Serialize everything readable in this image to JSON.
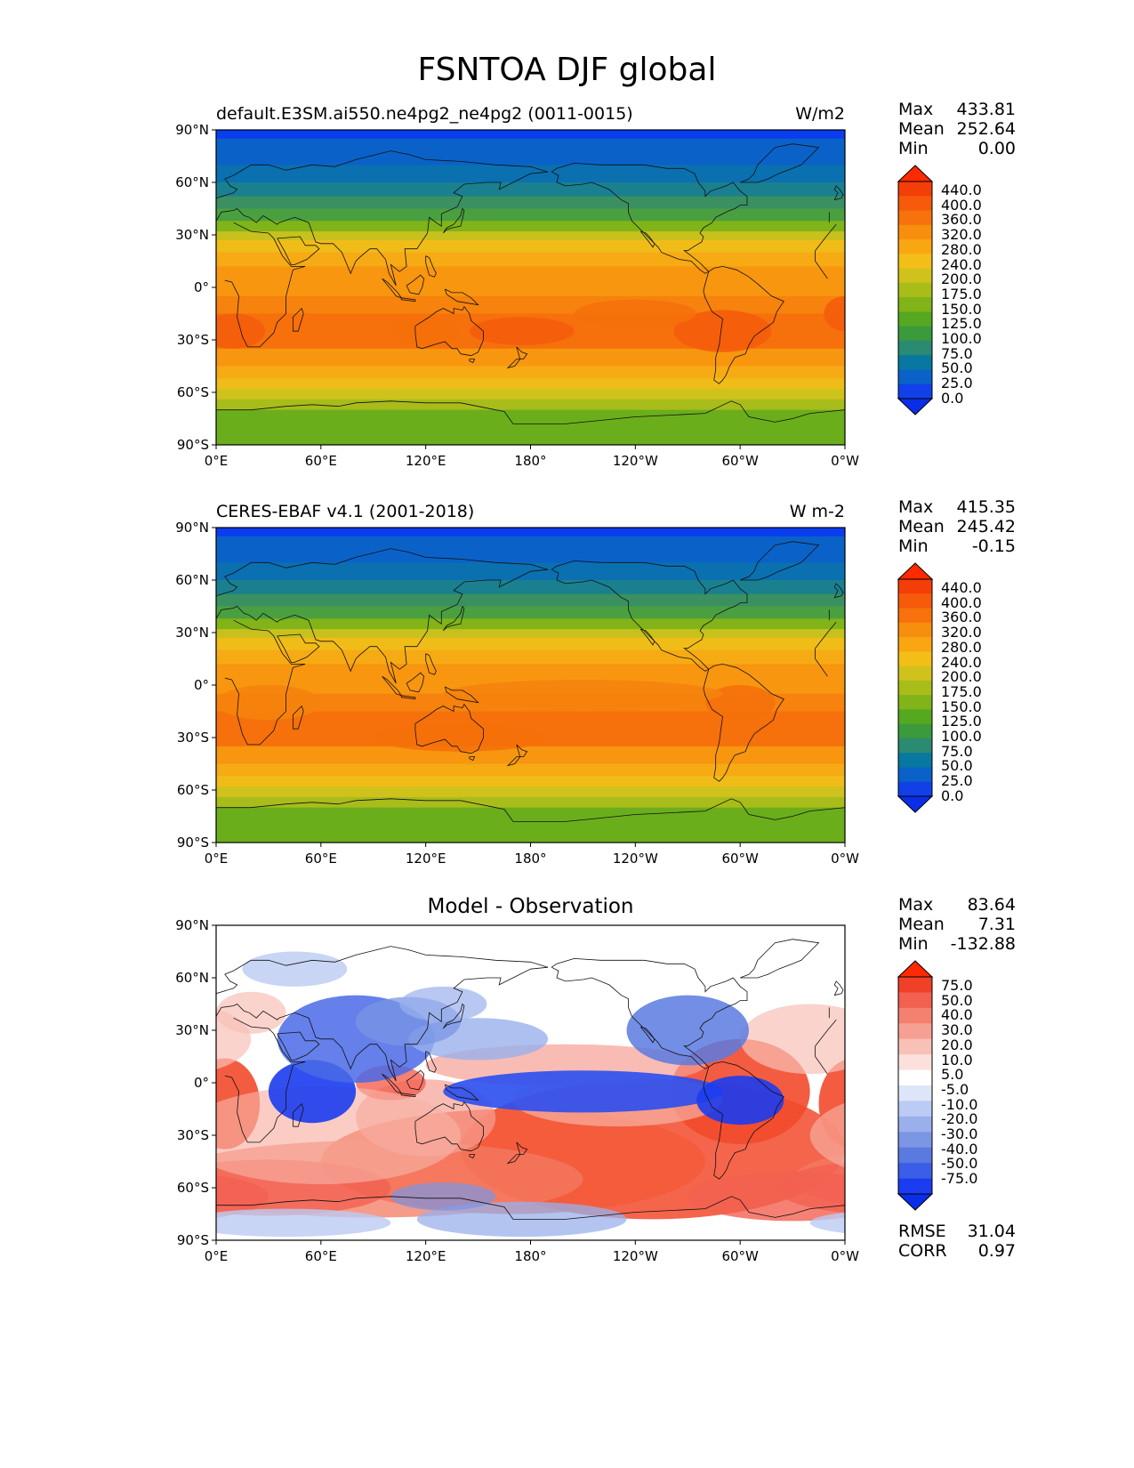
{
  "title": "FSNTOA DJF global",
  "panels": [
    {
      "id": "model",
      "left_title": "default.E3SM.ai550.ne4pg2_ne4pg2 (0011-0015)",
      "units": "W/m2",
      "center_title": "",
      "stats": [
        {
          "label": "Max",
          "value": "433.81"
        },
        {
          "label": "Mean",
          "value": "252.64"
        },
        {
          "label": "Min",
          "value": "0.00"
        }
      ],
      "colorbar_levels": [
        "440.0",
        "400.0",
        "360.0",
        "320.0",
        "280.0",
        "240.0",
        "200.0",
        "175.0",
        "150.0",
        "125.0",
        "100.0",
        "75.0",
        "50.0",
        "25.0",
        "0.0"
      ],
      "colorbar_colors": [
        "#1140e8",
        "#0a62c8",
        "#0878a0",
        "#2a8a72",
        "#3a9a3c",
        "#55a820",
        "#80b418",
        "#a8bc1a",
        "#d0c21c",
        "#f4be18",
        "#f9a612",
        "#f88e0e",
        "#f7720c",
        "#f65a0a",
        "#f43e08"
      ],
      "colorbar_extend_low": "#0a2ee8",
      "colorbar_extend_high": "#ff2a00"
    },
    {
      "id": "obs",
      "left_title": "CERES-EBAF v4.1 (2001-2018)",
      "units": "W m-2",
      "center_title": "",
      "stats": [
        {
          "label": "Max",
          "value": "415.35"
        },
        {
          "label": "Mean",
          "value": "245.42"
        },
        {
          "label": "Min",
          "value": "-0.15"
        }
      ],
      "colorbar_levels": [
        "440.0",
        "400.0",
        "360.0",
        "320.0",
        "280.0",
        "240.0",
        "200.0",
        "175.0",
        "150.0",
        "125.0",
        "100.0",
        "75.0",
        "50.0",
        "25.0",
        "0.0"
      ],
      "colorbar_colors": [
        "#1140e8",
        "#0a62c8",
        "#0878a0",
        "#2a8a72",
        "#3a9a3c",
        "#55a820",
        "#80b418",
        "#a8bc1a",
        "#d0c21c",
        "#f4be18",
        "#f9a612",
        "#f88e0e",
        "#f7720c",
        "#f65a0a",
        "#f43e08"
      ],
      "colorbar_extend_low": "#0a2ee8",
      "colorbar_extend_high": "#ff2a00"
    },
    {
      "id": "diff",
      "left_title": "",
      "units": "",
      "center_title": "Model - Observation",
      "stats": [
        {
          "label": "Max",
          "value": "83.64"
        },
        {
          "label": "Mean",
          "value": "7.31"
        },
        {
          "label": "Min",
          "value": "-132.88"
        }
      ],
      "colorbar_levels": [
        "75.0",
        "50.0",
        "40.0",
        "30.0",
        "20.0",
        "10.0",
        "5.0",
        "-5.0",
        "-10.0",
        "-20.0",
        "-30.0",
        "-40.0",
        "-50.0",
        "-75.0"
      ],
      "colorbar_colors": [
        "#1b3cf0",
        "#3a5ee8",
        "#5a7ae0",
        "#7a96e4",
        "#9ab0ec",
        "#bccbf3",
        "#dde5f9",
        "#ffffff",
        "#fbe0dc",
        "#f8c0b6",
        "#f6a094",
        "#f48070",
        "#f26050",
        "#f04028"
      ],
      "colorbar_extend_low": "#0a2ee8",
      "colorbar_extend_high": "#ff2a00",
      "rmse": {
        "label": "RMSE",
        "value": "31.04"
      },
      "corr": {
        "label": "CORR",
        "value": "0.97"
      }
    }
  ],
  "lat_ticks": [
    "90°N",
    "60°N",
    "30°N",
    "0°",
    "30°S",
    "60°S",
    "90°S"
  ],
  "lon_ticks": [
    "0°E",
    "60°E",
    "120°E",
    "180°",
    "120°W",
    "60°W",
    "0°W"
  ]
}
